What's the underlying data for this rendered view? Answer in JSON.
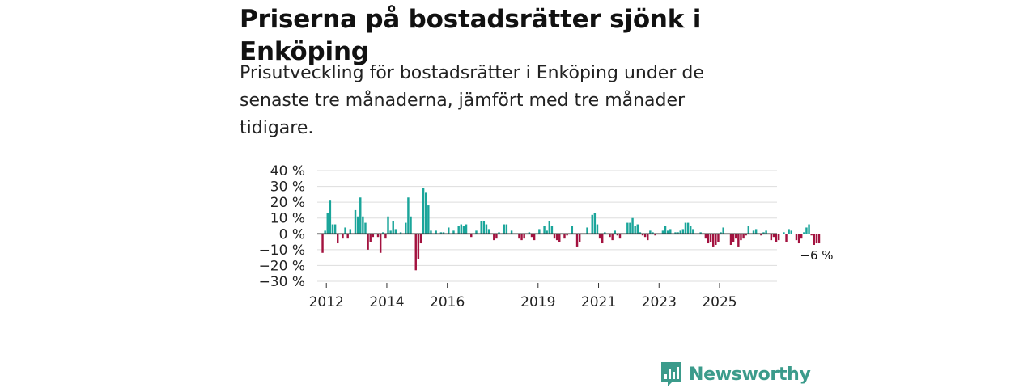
{
  "header": {
    "title": "Priserna på bostadsrätter sjönk i Enköping",
    "subtitle": "Prisutveckling för bostadsrätter i Enköping under de senaste tre månaderna, jämfört med tre månader tidigare."
  },
  "brand": {
    "name": "Newsworthy"
  },
  "colors": {
    "positive": "#1aa59a",
    "negative": "#a3123f",
    "grid": "#dddddd",
    "zero": "#333333",
    "brand": "#3b9b8b"
  },
  "chart_data": {
    "type": "bar",
    "title": "Priserna på bostadsrätter sjönk i Enköping",
    "xlabel": "",
    "ylabel": "",
    "ylim": [
      -30,
      40
    ],
    "yticks": [
      40,
      30,
      20,
      10,
      0,
      -10,
      -20,
      -30
    ],
    "ytick_labels": [
      "40 %",
      "30 %",
      "20 %",
      "10 %",
      "0 %",
      "−10 %",
      "−20 %",
      "−30 %"
    ],
    "x_tick_labels": [
      "2012",
      "2014",
      "2016",
      "2019",
      "2021",
      "2023",
      "2025"
    ],
    "x_tick_years": [
      2012,
      2014,
      2016,
      2019,
      2021,
      2023,
      2025
    ],
    "start_year": 2011.7,
    "end_year": 2026.9,
    "month_start": [
      2011,
      11
    ],
    "end_label": "−6 %",
    "values": [
      -12,
      2,
      13,
      21,
      6,
      6,
      -6,
      0,
      -3,
      4,
      -3,
      3,
      0,
      15,
      11,
      23,
      11,
      7,
      -10,
      -5,
      -2,
      0,
      -2,
      -12,
      1,
      -3,
      11,
      2,
      8,
      3,
      0,
      1,
      0,
      7,
      23,
      11,
      0,
      -23,
      -16,
      -6,
      29,
      26,
      18,
      2,
      0,
      2,
      0,
      1,
      1,
      0,
      4,
      0,
      2,
      0,
      5,
      6,
      5,
      6,
      0,
      -2,
      0,
      2,
      0,
      8,
      8,
      6,
      3,
      0,
      -4,
      -3,
      1,
      0,
      6,
      6,
      0,
      2,
      0,
      0,
      -3,
      -4,
      -3,
      0,
      1,
      -2,
      -4,
      0,
      3,
      0,
      5,
      2,
      8,
      5,
      -3,
      -4,
      -5,
      0,
      -3,
      -1,
      0,
      5,
      0,
      -8,
      -5,
      0,
      0,
      4,
      0,
      12,
      13,
      6,
      -3,
      -6,
      1,
      0,
      -2,
      -4,
      2,
      -1,
      -3,
      0,
      0,
      7,
      7,
      10,
      5,
      6,
      1,
      -1,
      -2,
      -4,
      2,
      1,
      -1,
      0,
      0,
      2,
      5,
      2,
      3,
      0,
      1,
      1,
      2,
      3,
      7,
      7,
      5,
      3,
      0,
      0,
      1,
      0,
      -3,
      -6,
      -5,
      -8,
      -7,
      -5,
      1,
      4,
      0,
      0,
      -7,
      -5,
      -3,
      -8,
      -4,
      -3,
      -1,
      5,
      0,
      2,
      3,
      0,
      -1,
      1,
      2,
      0,
      -4,
      -2,
      -5,
      -4,
      0,
      1,
      -5,
      3,
      2,
      0,
      -4,
      -6,
      -3,
      1,
      4,
      6,
      -1,
      -7,
      -6,
      -6
    ]
  }
}
